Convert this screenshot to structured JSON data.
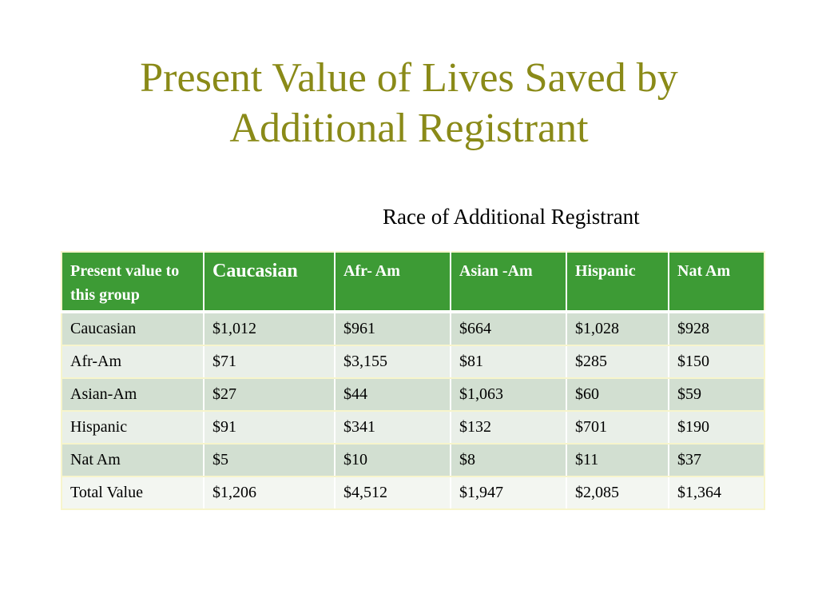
{
  "slide": {
    "title_line1": "Present Value of Lives Saved by",
    "title_line2": "Additional Registrant",
    "subtitle": "Race of Additional Registrant",
    "accent_color": "#8a8a18",
    "header_color": "#3d9b35"
  },
  "table": {
    "headers": [
      "Present value to this group",
      "Caucasian",
      "Afr- Am",
      "Asian -Am",
      "Hispanic",
      "Nat Am"
    ],
    "rows": [
      [
        "Caucasian",
        "$1,012",
        "$961",
        "$664",
        "$1,028",
        "$928"
      ],
      [
        "Afr-Am",
        "$71",
        "$3,155",
        "$81",
        "$285",
        "$150"
      ],
      [
        "Asian-Am",
        "$27",
        "$44",
        "$1,063",
        "$60",
        "$59"
      ],
      [
        "Hispanic",
        "$91",
        "$341",
        "$132",
        "$701",
        "$190"
      ],
      [
        "Nat Am",
        "$5",
        "$10",
        "$8",
        "$11",
        "$37"
      ],
      [
        "Total Value",
        "$1,206",
        "$4,512",
        "$1,947",
        "$2,085",
        "$1,364"
      ]
    ]
  }
}
